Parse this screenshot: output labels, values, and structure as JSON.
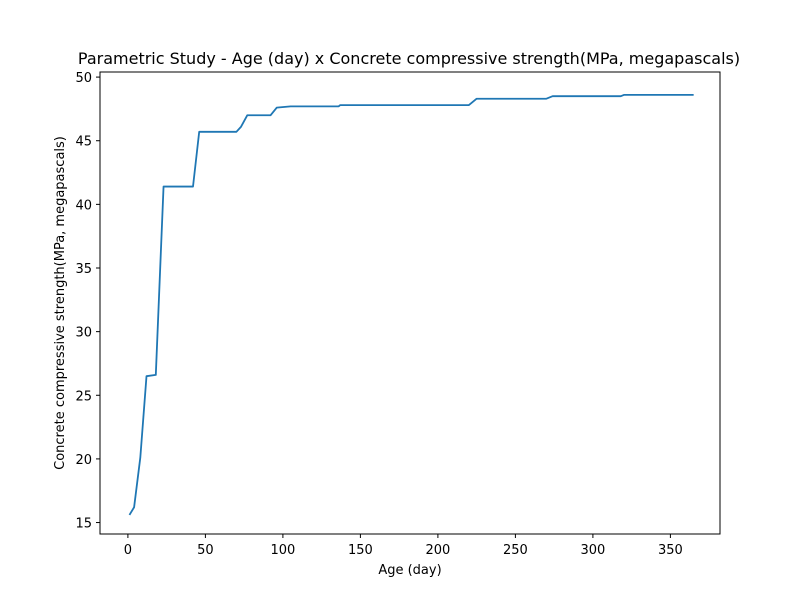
{
  "chart_data": {
    "type": "line",
    "title": "Parametric Study - Age (day) x Concrete compressive strength(MPa, megapascals)",
    "xlabel": "Age (day)",
    "ylabel": "Concrete compressive strength(MPa, megapascals)",
    "xlim": [
      -18,
      382
    ],
    "ylim": [
      14.1,
      50.4
    ],
    "xticks": [
      0,
      50,
      100,
      150,
      200,
      250,
      300,
      350
    ],
    "yticks": [
      15,
      20,
      25,
      30,
      35,
      40,
      45,
      50
    ],
    "grid": false,
    "series": [
      {
        "color": "#1f77b4",
        "x": [
          1,
          4,
          8,
          12,
          18,
          23,
          42,
          46,
          58,
          70,
          73,
          77,
          92,
          96,
          105,
          136,
          137,
          146,
          220,
          225,
          270,
          274,
          318,
          320,
          365
        ],
        "y": [
          15.6,
          16.2,
          20.1,
          26.5,
          26.6,
          41.4,
          41.4,
          45.7,
          45.7,
          45.7,
          46.1,
          47.0,
          47.0,
          47.6,
          47.7,
          47.7,
          47.8,
          47.8,
          47.8,
          48.3,
          48.3,
          48.5,
          48.5,
          48.6,
          48.6
        ]
      }
    ]
  }
}
